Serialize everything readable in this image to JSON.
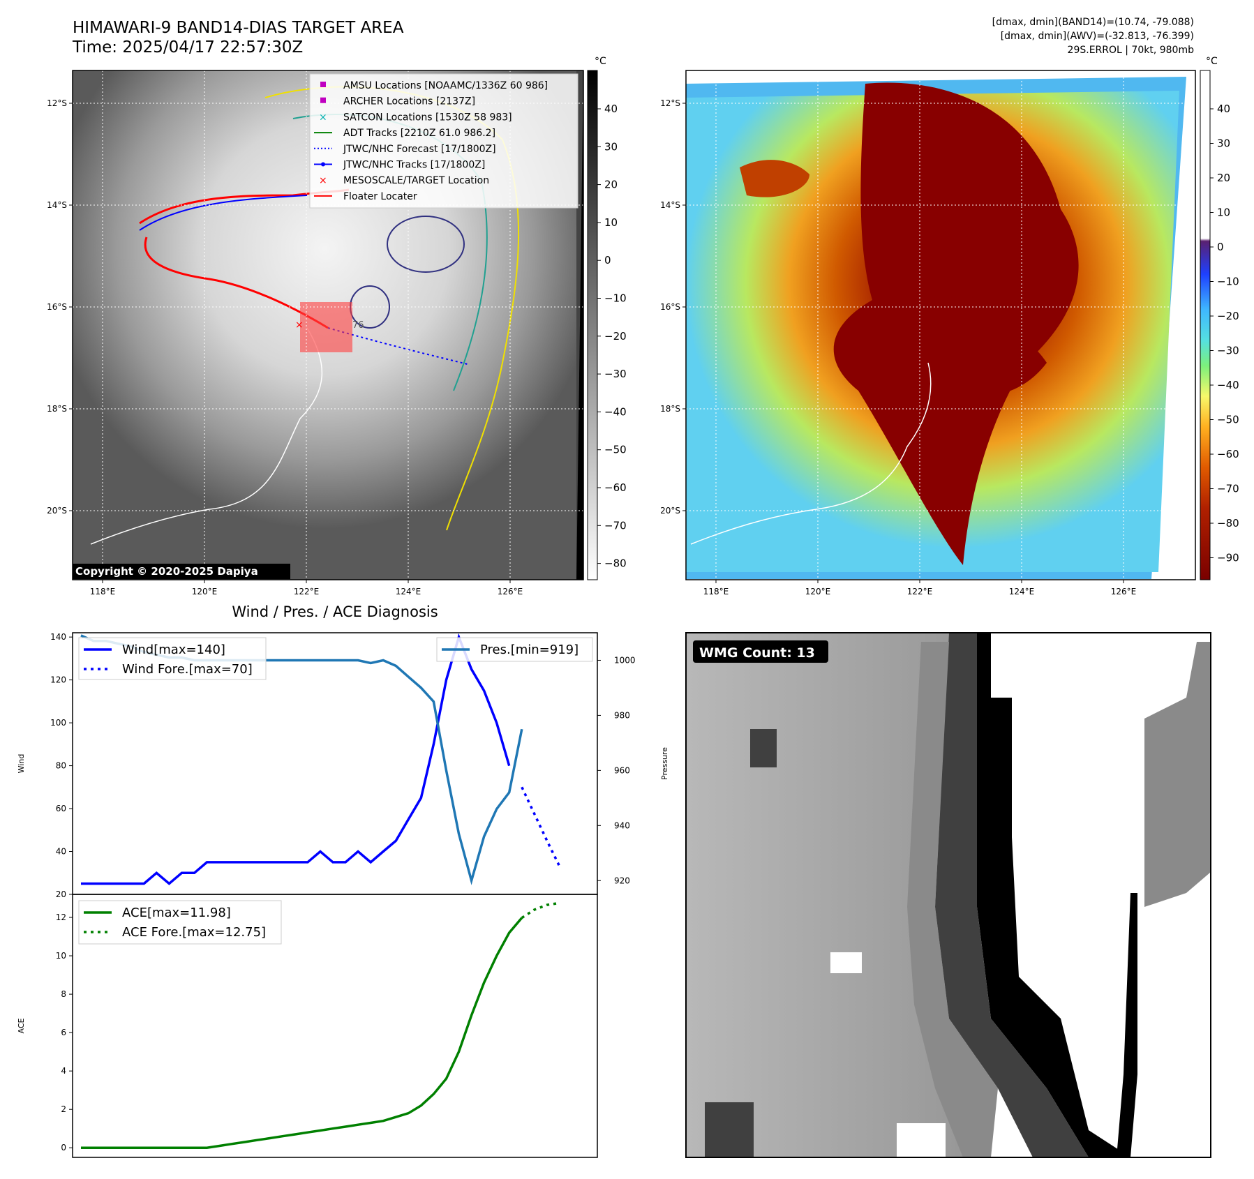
{
  "header": {
    "title_line1": "HIMAWARI-9 BAND14-DIAS TARGET AREA",
    "title_line2": "Time: 2025/04/17 22:57:30Z",
    "info_line1": "[dmax, dmin](BAND14)=(10.74, -79.088)",
    "info_line2": "[dmax, dmin](AWV)=(-32.813, -76.399)",
    "info_line3": "29S.ERROL | 70kt, 980mb"
  },
  "map_common": {
    "lon_ticks": [
      "118°E",
      "120°E",
      "122°E",
      "124°E",
      "126°E"
    ],
    "lat_ticks": [
      "12°S",
      "14°S",
      "16°S",
      "18°S",
      "20°S"
    ]
  },
  "panel_ir": {
    "legend": [
      {
        "label": "AMSU Locations [NOAAMC/1336Z 60 986]",
        "symbol": "square",
        "color": "#c000c0"
      },
      {
        "label": "ARCHER Locations [2137Z]",
        "symbol": "square",
        "color": "#c000c0"
      },
      {
        "label": "SATCON Locations [1530Z 58 983]",
        "symbol": "x",
        "color": "#00b0b0"
      },
      {
        "label": "ADT Tracks [2210Z 61.0 986.2]",
        "symbol": "line",
        "color": "#008000"
      },
      {
        "label": "JTWC/NHC Forecast [17/1800Z]",
        "symbol": "dotted",
        "color": "#0000ff"
      },
      {
        "label": "JTWC/NHC Tracks [17/1800Z]",
        "symbol": "line-dot",
        "color": "#0000ff"
      },
      {
        "label": "MESOSCALE/TARGET Location",
        "symbol": "x",
        "color": "#ff0000"
      },
      {
        "label": "Floater Locater",
        "symbol": "line",
        "color": "#ff0000"
      }
    ],
    "copyright": "Copyright © 2020-2025 Dapiya",
    "colorbar_unit": "°C",
    "colorbar_ticks": [
      "40",
      "30",
      "20",
      "10",
      "0",
      "−10",
      "−20",
      "−30",
      "−40",
      "−50",
      "−60",
      "−70",
      "−80"
    ],
    "marker_label": "76"
  },
  "panel_color": {
    "colorbar_unit": "°C",
    "colorbar_ticks": [
      "40",
      "30",
      "20",
      "10",
      "0",
      "−10",
      "−20",
      "−30",
      "−40",
      "−50",
      "−60",
      "−70",
      "−80",
      "−90"
    ]
  },
  "panel_wmg": {
    "badge": "WMG Count: 13"
  },
  "chart_data": [
    {
      "type": "line",
      "title": "Wind / Pres. / ACE Diagnosis",
      "ylabel": "Wind",
      "ylabel_right": "Pressure",
      "ylim": [
        20,
        142
      ],
      "ylim_right": [
        915,
        1010
      ],
      "yticks": [
        20,
        40,
        60,
        80,
        100,
        120,
        140
      ],
      "yticks_right": [
        920,
        940,
        960,
        980,
        1000
      ],
      "legend_left": [
        "Wind[max=140]",
        "Wind Fore.[max=70]"
      ],
      "legend_right": [
        "Pres.[min=919]"
      ],
      "series": [
        {
          "name": "Wind[max=140]",
          "color": "#0000ff",
          "style": "solid",
          "x": [
            0,
            1,
            2,
            3,
            4,
            5,
            6,
            7,
            8,
            9,
            10,
            11,
            12,
            13,
            14,
            15,
            16,
            17,
            18,
            19,
            20,
            21,
            22,
            23,
            24,
            25,
            26,
            27,
            28,
            29,
            30,
            31,
            32,
            33,
            34
          ],
          "values": [
            25,
            25,
            25,
            25,
            25,
            25,
            30,
            25,
            30,
            30,
            35,
            35,
            35,
            35,
            35,
            35,
            35,
            35,
            35,
            40,
            35,
            35,
            40,
            35,
            40,
            45,
            55,
            65,
            90,
            120,
            140,
            125,
            115,
            100,
            80
          ]
        },
        {
          "name": "Wind Fore.[max=70]",
          "color": "#0000ff",
          "style": "dotted",
          "x": [
            35,
            37,
            38
          ],
          "values": [
            70,
            45,
            33
          ]
        },
        {
          "name": "Pres.[min=919]",
          "color": "#1f77b4",
          "style": "solid",
          "axis": "right",
          "x": [
            0,
            1,
            2,
            3,
            4,
            5,
            6,
            7,
            8,
            9,
            10,
            11,
            12,
            13,
            14,
            15,
            16,
            17,
            18,
            19,
            20,
            21,
            22,
            23,
            24,
            25,
            26,
            27,
            28,
            29,
            30,
            31,
            32,
            33,
            34,
            35
          ],
          "values": [
            1009,
            1007,
            1007,
            1006,
            1005,
            1003,
            1002,
            1001,
            1001,
            1000,
            1000,
            1000,
            1000,
            1000,
            1000,
            1000,
            1000,
            1000,
            1000,
            1000,
            1000,
            1000,
            1000,
            999,
            1000,
            998,
            994,
            990,
            985,
            960,
            937,
            920,
            936,
            946,
            952,
            975
          ]
        }
      ]
    },
    {
      "type": "line",
      "ylabel": "ACE",
      "ylim": [
        -0.5,
        13.2
      ],
      "yticks": [
        0,
        2,
        4,
        6,
        8,
        10,
        12
      ],
      "legend": [
        "ACE[max=11.98]",
        "ACE Fore.[max=12.75]"
      ],
      "series": [
        {
          "name": "ACE[max=11.98]",
          "color": "#008000",
          "style": "solid",
          "x": [
            0,
            1,
            2,
            3,
            4,
            5,
            6,
            7,
            8,
            9,
            10,
            11,
            12,
            13,
            14,
            15,
            16,
            17,
            18,
            19,
            20,
            21,
            22,
            23,
            24,
            25,
            26,
            27,
            28,
            29,
            30,
            31,
            32,
            33,
            34,
            35
          ],
          "values": [
            0,
            0,
            0,
            0,
            0,
            0,
            0,
            0,
            0,
            0,
            0,
            0.1,
            0.2,
            0.3,
            0.4,
            0.5,
            0.6,
            0.7,
            0.8,
            0.9,
            1.0,
            1.1,
            1.2,
            1.3,
            1.4,
            1.6,
            1.8,
            2.2,
            2.8,
            3.6,
            5.0,
            6.9,
            8.6,
            10.0,
            11.2,
            11.98
          ]
        },
        {
          "name": "ACE Fore.[max=12.75]",
          "color": "#008000",
          "style": "dotted",
          "x": [
            35,
            36,
            37,
            38
          ],
          "values": [
            11.98,
            12.4,
            12.65,
            12.75
          ]
        }
      ]
    }
  ]
}
